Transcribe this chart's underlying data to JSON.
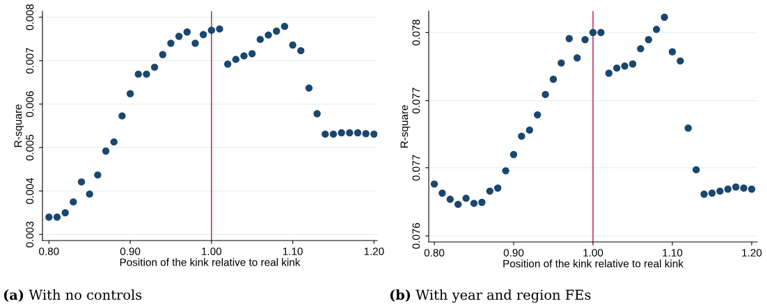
{
  "chart_data": [
    {
      "type": "scatter",
      "xlabel": "Position of the kink relative to real kink",
      "ylabel": "R-square",
      "marker": "circle",
      "grid": "y",
      "x": [
        0.8,
        0.81,
        0.82,
        0.83,
        0.84,
        0.85,
        0.86,
        0.87,
        0.88,
        0.89,
        0.9,
        0.91,
        0.92,
        0.93,
        0.94,
        0.95,
        0.96,
        0.97,
        0.98,
        0.99,
        1.0,
        1.01,
        1.02,
        1.03,
        1.04,
        1.05,
        1.06,
        1.07,
        1.08,
        1.09,
        1.1,
        1.11,
        1.12,
        1.13,
        1.14,
        1.15,
        1.16,
        1.17,
        1.18,
        1.19,
        1.2
      ],
      "series": [
        {
          "color": "#1a476f",
          "values": [
            0.0034,
            0.0034,
            0.0035,
            0.00375,
            0.00421,
            0.00393,
            0.00437,
            0.00492,
            0.00513,
            0.00573,
            0.00624,
            0.00669,
            0.00669,
            0.00685,
            0.00714,
            0.0074,
            0.00756,
            0.00766,
            0.0074,
            0.0076,
            0.0077,
            0.00773,
            0.00692,
            0.00703,
            0.00711,
            0.00716,
            0.00749,
            0.00759,
            0.00768,
            0.00779,
            0.00736,
            0.00723,
            0.00637,
            0.00578,
            0.00531,
            0.00531,
            0.00534,
            0.00534,
            0.00534,
            0.00532,
            0.00531
          ]
        }
      ],
      "xlim": [
        0.792,
        1.204
      ],
      "xticks": [
        {
          "value": 0.8,
          "label": "0.80"
        },
        {
          "value": 0.9,
          "label": "0.90"
        },
        {
          "value": 1.0,
          "label": "1.00"
        },
        {
          "value": 1.1,
          "label": "1.10"
        },
        {
          "value": 1.2,
          "label": "1.20"
        }
      ],
      "ylim": [
        0.00286,
        0.00814
      ],
      "yticks": [
        {
          "value": 0.003,
          "label": "0.003"
        },
        {
          "value": 0.004,
          "label": "0.004"
        },
        {
          "value": 0.005,
          "label": "0.005"
        },
        {
          "value": 0.006,
          "label": "0.006"
        },
        {
          "value": 0.007,
          "label": "0.007"
        },
        {
          "value": 0.008,
          "label": "0.008"
        }
      ],
      "ref_lines": [
        {
          "axis": "x",
          "value": 1.0,
          "color": "#c8385a"
        }
      ],
      "annotations": [
        "(a) With no controls"
      ]
    },
    {
      "type": "scatter",
      "xlabel": "Position of the kink relative to real kink",
      "ylabel": "R-square",
      "marker": "circle",
      "grid": "y",
      "x": [
        0.8,
        0.81,
        0.82,
        0.83,
        0.84,
        0.85,
        0.86,
        0.87,
        0.88,
        0.89,
        0.9,
        0.91,
        0.92,
        0.93,
        0.94,
        0.95,
        0.96,
        0.97,
        0.98,
        0.99,
        1.0,
        1.01,
        1.02,
        1.03,
        1.04,
        1.05,
        1.06,
        1.07,
        1.08,
        1.09,
        1.1,
        1.11,
        1.12,
        1.13,
        1.14,
        1.15,
        1.16,
        1.17,
        1.18,
        1.19,
        1.2
      ],
      "series": [
        {
          "color": "#1a476f",
          "values": [
            0.07651,
            0.07642,
            0.07636,
            0.07631,
            0.07637,
            0.07632,
            0.07633,
            0.07644,
            0.07647,
            0.07664,
            0.0768,
            0.07698,
            0.07704,
            0.07719,
            0.07739,
            0.07754,
            0.0777,
            0.07794,
            0.07775,
            0.07793,
            0.078,
            0.078,
            0.0776,
            0.07765,
            0.07767,
            0.07769,
            0.07784,
            0.07793,
            0.07803,
            0.07815,
            0.07781,
            0.07772,
            0.07706,
            0.07665,
            0.07641,
            0.07642,
            0.07644,
            0.07646,
            0.07648,
            0.07647,
            0.07646
          ]
        }
      ],
      "xlim": [
        0.793,
        1.207
      ],
      "xticks": [
        {
          "value": 0.8,
          "label": "0.80"
        },
        {
          "value": 0.9,
          "label": "0.90"
        },
        {
          "value": 1.0,
          "label": "1.00"
        },
        {
          "value": 1.1,
          "label": "1.10"
        },
        {
          "value": 1.2,
          "label": "1.20"
        }
      ],
      "ylim": [
        0.07594,
        0.07821
      ],
      "yticks": [
        {
          "value": 0.076,
          "label": "0.076"
        },
        {
          "value": 0.07667,
          "label": "0.077"
        },
        {
          "value": 0.07733,
          "label": "0.077"
        },
        {
          "value": 0.078,
          "label": "0.078"
        }
      ],
      "ref_lines": [
        {
          "axis": "x",
          "value": 1.0,
          "color": "#c8385a"
        }
      ],
      "annotations": [
        "(b) With year and region FEs"
      ]
    }
  ]
}
